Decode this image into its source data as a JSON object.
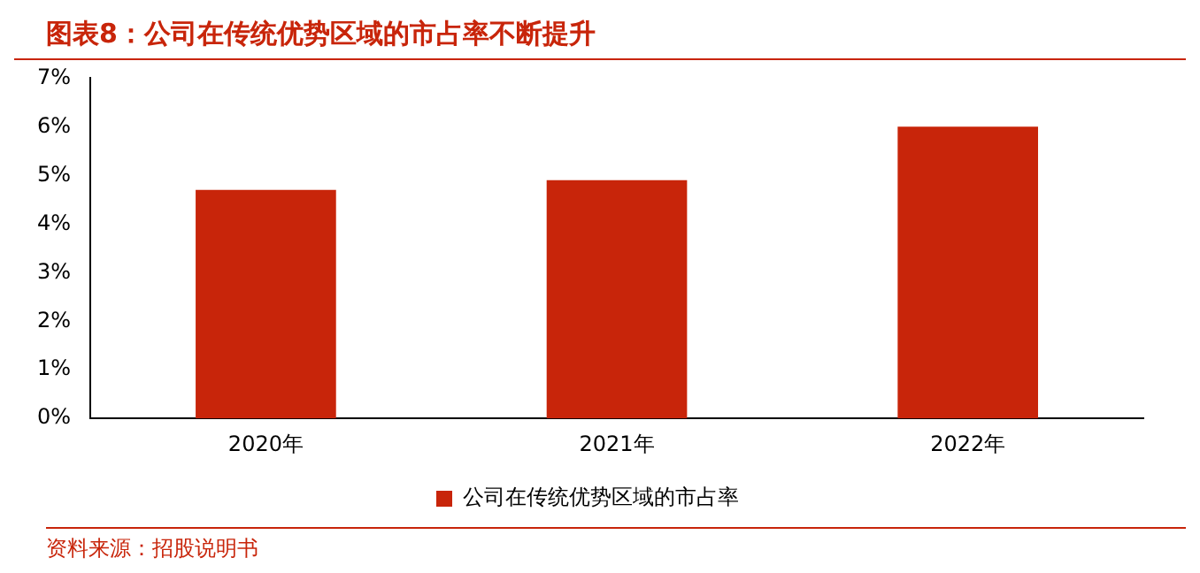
{
  "chart_data": {
    "type": "bar",
    "title": "图表8：公司在传统优势区域的市占率不断提升",
    "categories": [
      "2020年",
      "2021年",
      "2022年"
    ],
    "series": [
      {
        "name": "公司在传统优势区域的市占率",
        "color": "#c8250a",
        "values": [
          4.7,
          4.9,
          6.0
        ]
      }
    ],
    "ylim": [
      0,
      7
    ],
    "yticks": [
      {
        "value": 0,
        "label": "0%"
      },
      {
        "value": 1,
        "label": "1%"
      },
      {
        "value": 2,
        "label": "2%"
      },
      {
        "value": 3,
        "label": "3%"
      },
      {
        "value": 4,
        "label": "4%"
      },
      {
        "value": 5,
        "label": "5%"
      },
      {
        "value": 6,
        "label": "6%"
      },
      {
        "value": 7,
        "label": "7%"
      }
    ],
    "grid": false,
    "legend": "bottom",
    "annotations": [
      "资料来源：招股说明书"
    ]
  }
}
